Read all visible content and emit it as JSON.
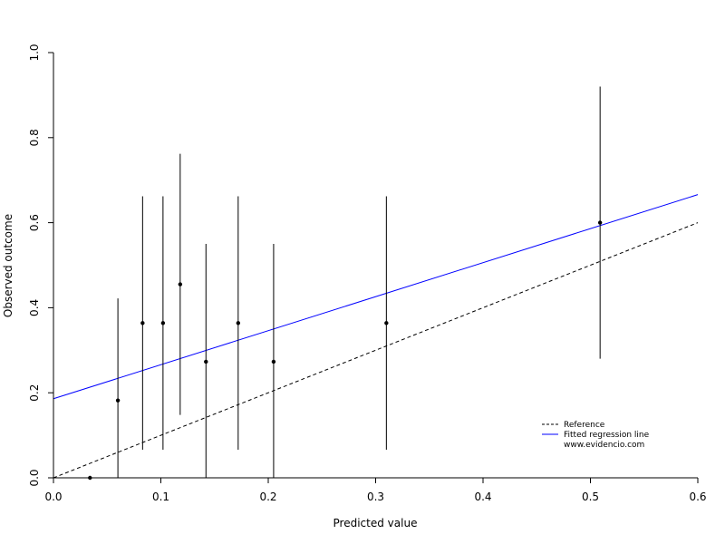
{
  "chart_data": {
    "type": "scatter",
    "xlabel": "Predicted value",
    "ylabel": "Observed outcome",
    "xlim": [
      0,
      0.6
    ],
    "ylim": [
      0,
      1.0
    ],
    "x_ticks": [
      0.0,
      0.1,
      0.2,
      0.3,
      0.4,
      0.5,
      0.6
    ],
    "x_tick_labels": [
      "0.0",
      "0.1",
      "0.2",
      "0.3",
      "0.4",
      "0.5",
      "0.6"
    ],
    "y_ticks": [
      0.0,
      0.2,
      0.4,
      0.6,
      0.8,
      1.0
    ],
    "y_tick_labels": [
      "0.0",
      "0.2",
      "0.4",
      "0.6",
      "0.8",
      "1.0"
    ],
    "grid": false,
    "points": [
      {
        "x": 0.034,
        "y": 0.0,
        "low": 0.0,
        "high": 0.0
      },
      {
        "x": 0.06,
        "y": 0.182,
        "low": 0.0,
        "high": 0.422
      },
      {
        "x": 0.083,
        "y": 0.364,
        "low": 0.066,
        "high": 0.662
      },
      {
        "x": 0.102,
        "y": 0.364,
        "low": 0.066,
        "high": 0.662
      },
      {
        "x": 0.118,
        "y": 0.455,
        "low": 0.148,
        "high": 0.762
      },
      {
        "x": 0.142,
        "y": 0.273,
        "low": 0.0,
        "high": 0.55
      },
      {
        "x": 0.172,
        "y": 0.364,
        "low": 0.066,
        "high": 0.662
      },
      {
        "x": 0.205,
        "y": 0.273,
        "low": 0.0,
        "high": 0.55
      },
      {
        "x": 0.31,
        "y": 0.364,
        "low": 0.066,
        "high": 0.662
      },
      {
        "x": 0.509,
        "y": 0.6,
        "low": 0.28,
        "high": 0.92
      }
    ],
    "reference_line": {
      "intercept": 0.0,
      "slope": 1.0,
      "style": "dashed",
      "color": "#000000"
    },
    "regression_line": {
      "intercept": 0.186,
      "slope": 0.8,
      "style": "solid",
      "color": "#0000ff"
    },
    "legend": {
      "placement": "bottom-right",
      "entries": [
        {
          "label": "Reference",
          "style": "dashed",
          "color": "#000000"
        },
        {
          "label": "Fitted regression line",
          "style": "solid",
          "color": "#0000ff"
        }
      ],
      "note": "www.evidencio.com"
    }
  }
}
